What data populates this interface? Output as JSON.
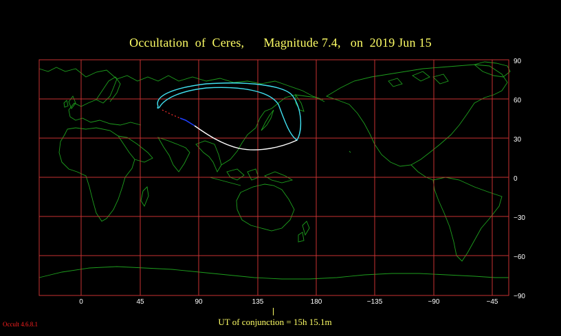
{
  "title": "Occultation  of  Ceres,      Magnitude 7.4,   on  2019 Jun 15",
  "lon_labels": [
    "0",
    "45",
    "90",
    "135",
    "180",
    "−135",
    "−90",
    "−45"
  ],
  "lat_labels": [
    "90",
    "60",
    "30",
    "0",
    "−30",
    "−60",
    "−90"
  ],
  "ut_conjunction": "UT of conjunction = 15h 15.1m",
  "version": "Occult 4.6.8.1",
  "colors": {
    "background": "#000000",
    "title": "#ffff66",
    "grid": "#c83232",
    "coastline": "#1ea01e",
    "path_cyan": "#40e0f0",
    "path_white": "#ffffff",
    "path_blue": "#2040ff",
    "path_red": "#ff3030",
    "label_red": "#ff2020"
  }
}
